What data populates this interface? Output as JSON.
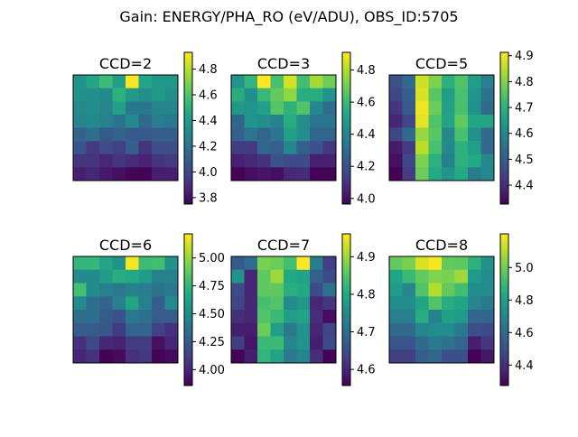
{
  "suptitle": "Gain: ENERGY/PHA_RO (eV/ADU), OBS_ID:5705",
  "colormap": "viridis",
  "chart_data": [
    {
      "type": "heatmap",
      "title": "CCD=2",
      "clim": [
        3.75,
        4.93
      ],
      "colorbar_ticks": [
        "3.8",
        "4.0",
        "4.2",
        "4.4",
        "4.6",
        "4.8"
      ],
      "values": [
        [
          4.35,
          4.45,
          4.55,
          4.4,
          4.93,
          4.45,
          4.38,
          4.38
        ],
        [
          4.35,
          4.33,
          4.3,
          4.5,
          4.38,
          4.33,
          4.38,
          4.33
        ],
        [
          4.3,
          4.33,
          4.28,
          4.42,
          4.22,
          4.22,
          4.28,
          4.28
        ],
        [
          4.28,
          4.3,
          4.27,
          4.2,
          4.3,
          4.15,
          4.25,
          4.22
        ],
        [
          4.12,
          4.18,
          4.08,
          4.12,
          4.08,
          4.08,
          4.1,
          4.1
        ],
        [
          4.05,
          3.95,
          4.02,
          3.98,
          4.1,
          3.93,
          4.03,
          4.03
        ],
        [
          3.93,
          3.93,
          3.88,
          3.93,
          3.9,
          3.86,
          3.93,
          3.95
        ],
        [
          3.85,
          3.88,
          3.83,
          3.8,
          3.76,
          3.76,
          3.85,
          3.85
        ]
      ]
    },
    {
      "type": "heatmap",
      "title": "CCD=3",
      "clim": [
        3.965,
        4.91
      ],
      "colorbar_ticks": [
        "4.0",
        "4.2",
        "4.4",
        "4.6",
        "4.8"
      ],
      "values": [
        [
          4.45,
          4.58,
          4.91,
          4.63,
          4.85,
          4.62,
          4.78,
          4.7
        ],
        [
          4.55,
          4.43,
          4.6,
          4.68,
          4.75,
          4.55,
          4.55,
          4.45
        ],
        [
          4.47,
          4.45,
          4.5,
          4.66,
          4.57,
          4.65,
          4.4,
          4.3
        ],
        [
          4.27,
          4.45,
          4.43,
          4.38,
          4.55,
          4.43,
          4.33,
          4.33
        ],
        [
          4.25,
          4.33,
          4.27,
          4.33,
          4.5,
          4.43,
          4.27,
          4.27
        ],
        [
          4.13,
          4.13,
          4.27,
          4.25,
          4.4,
          4.25,
          4.2,
          4.12
        ],
        [
          4.05,
          4.07,
          4.1,
          4.2,
          4.18,
          4.18,
          4.05,
          4.05
        ],
        [
          3.97,
          4.0,
          4.02,
          4.0,
          4.07,
          4.08,
          3.97,
          3.97
        ]
      ]
    },
    {
      "type": "heatmap",
      "title": "CCD=5",
      "clim": [
        4.327,
        4.913
      ],
      "colorbar_ticks": [
        "4.4",
        "4.5",
        "4.6",
        "4.7",
        "4.8",
        "4.9"
      ],
      "values": [
        [
          4.47,
          4.53,
          4.87,
          4.8,
          4.7,
          4.75,
          4.65,
          4.58
        ],
        [
          4.45,
          4.5,
          4.88,
          4.76,
          4.65,
          4.74,
          4.63,
          4.55
        ],
        [
          4.42,
          4.49,
          4.9,
          4.78,
          4.66,
          4.74,
          4.62,
          4.53
        ],
        [
          4.39,
          4.45,
          4.89,
          4.75,
          4.67,
          4.77,
          4.67,
          4.67
        ],
        [
          4.45,
          4.53,
          4.82,
          4.76,
          4.6,
          4.74,
          4.62,
          4.53
        ],
        [
          4.37,
          4.43,
          4.85,
          4.74,
          4.6,
          4.7,
          4.65,
          4.53
        ],
        [
          4.35,
          4.45,
          4.8,
          4.7,
          4.58,
          4.7,
          4.68,
          4.6
        ],
        [
          4.33,
          4.43,
          4.78,
          4.68,
          4.63,
          4.68,
          4.57,
          4.6
        ]
      ]
    },
    {
      "type": "heatmap",
      "title": "CCD=6",
      "clim": [
        3.857,
        5.216
      ],
      "colorbar_ticks": [
        "4.00",
        "4.25",
        "4.50",
        "4.75",
        "5.00"
      ],
      "values": [
        [
          4.75,
          4.75,
          4.65,
          4.55,
          5.2,
          4.78,
          4.8,
          4.55
        ],
        [
          4.5,
          4.5,
          4.6,
          4.7,
          4.68,
          4.6,
          4.45,
          4.45
        ],
        [
          4.8,
          4.5,
          4.45,
          4.4,
          4.45,
          4.43,
          4.38,
          4.4
        ],
        [
          4.5,
          4.35,
          4.3,
          4.45,
          4.65,
          4.45,
          4.25,
          4.5
        ],
        [
          4.35,
          4.35,
          4.25,
          4.2,
          4.4,
          4.35,
          4.25,
          4.25
        ],
        [
          4.25,
          4.25,
          4.22,
          4.1,
          4.3,
          4.3,
          4.12,
          4.05
        ],
        [
          4.05,
          4.15,
          4.0,
          3.98,
          4.1,
          4.1,
          3.92,
          4.0
        ],
        [
          4.0,
          4.05,
          3.86,
          3.9,
          4.05,
          4.08,
          3.87,
          3.9
        ]
      ]
    },
    {
      "type": "heatmap",
      "title": "CCD=7",
      "clim": [
        4.557,
        4.961
      ],
      "colorbar_ticks": [
        "4.6",
        "4.7",
        "4.8",
        "4.9"
      ],
      "values": [
        [
          4.67,
          4.7,
          4.88,
          4.87,
          4.84,
          4.96,
          4.73,
          4.63
        ],
        [
          4.76,
          4.6,
          4.86,
          4.9,
          4.8,
          4.79,
          4.68,
          4.65
        ],
        [
          4.65,
          4.6,
          4.86,
          4.86,
          4.81,
          4.8,
          4.65,
          4.71
        ],
        [
          4.64,
          4.6,
          4.84,
          4.85,
          4.75,
          4.77,
          4.6,
          4.62
        ],
        [
          4.61,
          4.6,
          4.85,
          4.83,
          4.78,
          4.79,
          4.61,
          4.57
        ],
        [
          4.59,
          4.59,
          4.87,
          4.78,
          4.72,
          4.76,
          4.6,
          4.64
        ],
        [
          4.63,
          4.58,
          4.83,
          4.83,
          4.74,
          4.76,
          4.59,
          4.65
        ],
        [
          4.56,
          4.59,
          4.82,
          4.79,
          4.72,
          4.74,
          4.61,
          4.56
        ]
      ]
    },
    {
      "type": "heatmap",
      "title": "CCD=8",
      "clim": [
        4.274,
        5.207
      ],
      "colorbar_ticks": [
        "4.4",
        "4.6",
        "4.8",
        "5.0"
      ],
      "values": [
        [
          4.98,
          5.02,
          5.15,
          5.2,
          4.98,
          4.97,
          4.87,
          4.75
        ],
        [
          4.82,
          4.9,
          4.98,
          5.03,
          5.02,
          5.07,
          4.78,
          4.72
        ],
        [
          4.78,
          4.7,
          4.95,
          5.1,
          4.98,
          4.92,
          4.72,
          4.72
        ],
        [
          4.73,
          4.73,
          4.82,
          4.95,
          4.85,
          4.82,
          4.7,
          4.65
        ],
        [
          4.68,
          4.68,
          4.85,
          4.68,
          4.8,
          4.78,
          4.58,
          4.58
        ],
        [
          4.6,
          4.6,
          4.7,
          4.72,
          4.73,
          4.65,
          4.5,
          4.48
        ],
        [
          4.52,
          4.52,
          4.6,
          4.65,
          4.62,
          4.58,
          4.35,
          4.42
        ],
        [
          4.45,
          4.45,
          4.55,
          4.58,
          4.5,
          4.5,
          4.28,
          4.33
        ]
      ]
    }
  ]
}
